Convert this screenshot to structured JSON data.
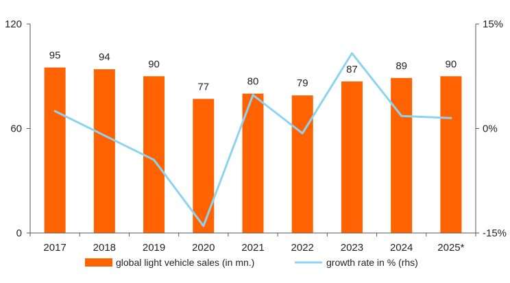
{
  "chart_data": {
    "type": "bar",
    "categories": [
      "2017",
      "2018",
      "2019",
      "2020",
      "2021",
      "2022",
      "2023",
      "2024",
      "2025*"
    ],
    "series": [
      {
        "name": "global light vehicle sales (in mn.)",
        "type": "bar",
        "axis": "left",
        "color": "#FF6200",
        "values": [
          95,
          94,
          90,
          77,
          80,
          79,
          87,
          89,
          90
        ]
      },
      {
        "name": "growth rate in % (rhs)",
        "type": "line",
        "axis": "right",
        "color": "#8CD3F2",
        "values": [
          2.5,
          -1.0,
          -4.5,
          -14.0,
          4.8,
          -0.7,
          10.8,
          1.8,
          1.5
        ]
      }
    ],
    "left_axis": {
      "ylim": [
        0,
        120
      ],
      "ticks": [
        0,
        60,
        120
      ]
    },
    "right_axis": {
      "ylim": [
        -15,
        15
      ],
      "ticks": [
        -15,
        0,
        15
      ],
      "tick_labels": [
        "-15%",
        "0%",
        "15%"
      ]
    },
    "data_labels": [
      "95",
      "94",
      "90",
      "77",
      "80",
      "79",
      "87",
      "89",
      "90"
    ],
    "grid": false,
    "legend_position": "bottom",
    "title": "",
    "xlabel": "",
    "ylabel": ""
  }
}
